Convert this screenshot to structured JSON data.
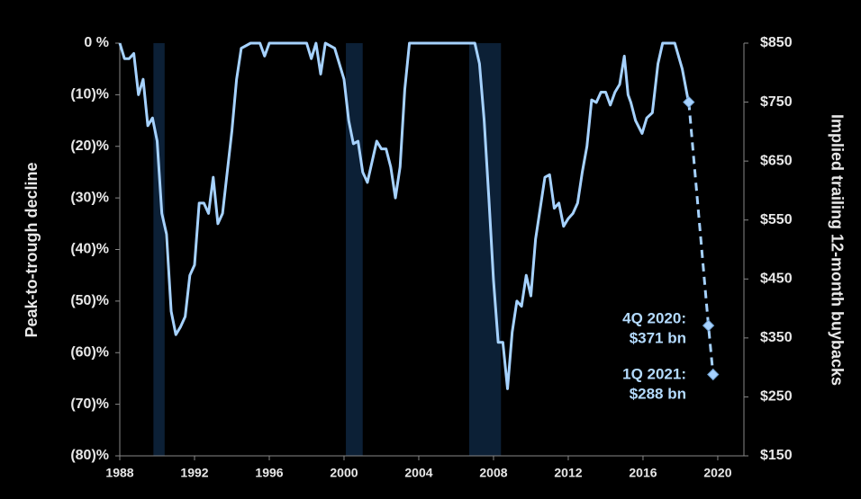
{
  "chart_data": {
    "type": "line",
    "ylabel": "Peak-to-trough decline",
    "y2label": "Implied trailing 12-month buybacks",
    "xlim": [
      1988,
      2021.4
    ],
    "xticks": [
      1988,
      1992,
      1996,
      2000,
      2004,
      2008,
      2012,
      2016,
      2020
    ],
    "ylim": [
      -80,
      0
    ],
    "yticks": [
      {
        "value": 0,
        "label": "0 %"
      },
      {
        "value": -10,
        "label": "(10)%"
      },
      {
        "value": -20,
        "label": "(20)%"
      },
      {
        "value": -30,
        "label": "(30)%"
      },
      {
        "value": -40,
        "label": "(40)%"
      },
      {
        "value": -50,
        "label": "(50)%"
      },
      {
        "value": -60,
        "label": "(60)%"
      },
      {
        "value": -70,
        "label": "(70)%"
      },
      {
        "value": -80,
        "label": "(80)%"
      }
    ],
    "y2lim": [
      150,
      850
    ],
    "y2ticks": [
      {
        "value": 850,
        "label": "$850"
      },
      {
        "value": 750,
        "label": "$750"
      },
      {
        "value": 650,
        "label": "$650"
      },
      {
        "value": 550,
        "label": "$550"
      },
      {
        "value": 450,
        "label": "$450"
      },
      {
        "value": 350,
        "label": "$350"
      },
      {
        "value": 250,
        "label": "$250"
      },
      {
        "value": 150,
        "label": "$150"
      }
    ],
    "shaded_ranges": [
      [
        1989.8,
        1990.4
      ],
      [
        2000.1,
        2001.0
      ],
      [
        2006.7,
        2008.4
      ]
    ],
    "shade_color": "#0c2036",
    "series": [
      {
        "color": "#a6d2ff",
        "x": [
          1988.0,
          1988.25,
          1988.5,
          1988.75,
          1989.0,
          1989.25,
          1989.5,
          1989.75,
          1990.0,
          1990.25,
          1990.5,
          1990.75,
          1991.0,
          1991.25,
          1991.5,
          1991.75,
          1992.0,
          1992.25,
          1992.5,
          1992.75,
          1993.0,
          1993.25,
          1993.5,
          1993.75,
          1994.0,
          1994.25,
          1994.5,
          1995.0,
          1995.5,
          1995.75,
          1996.0,
          1998.0,
          1998.25,
          1998.5,
          1998.75,
          1999.0,
          1999.5,
          2000.0,
          2000.25,
          2000.5,
          2000.75,
          2001.0,
          2001.25,
          2001.5,
          2001.75,
          2002.0,
          2002.25,
          2002.5,
          2002.75,
          2003.0,
          2003.25,
          2003.5,
          2007.0,
          2007.25,
          2007.5,
          2007.75,
          2008.0,
          2008.25,
          2008.5,
          2008.75,
          2009.0,
          2009.25,
          2009.5,
          2009.75,
          2010.0,
          2010.25,
          2010.5,
          2010.75,
          2011.0,
          2011.25,
          2011.5,
          2011.75,
          2012.0,
          2012.25,
          2012.5,
          2012.75,
          2013.0,
          2013.25,
          2013.5,
          2013.75,
          2014.0,
          2014.25,
          2014.5,
          2014.75,
          2015.0,
          2015.2,
          2015.35,
          2015.6,
          2015.95,
          2016.2,
          2016.5,
          2016.8,
          2017.05,
          2017.7,
          2018.1,
          2018.45
        ],
        "values": [
          0,
          -3,
          -3,
          -2,
          -10,
          -7,
          -16,
          -14.5,
          -19,
          -33,
          -37,
          -52,
          -56.5,
          -55,
          -53,
          -45,
          -43,
          -31,
          -31,
          -33,
          -26,
          -35,
          -33,
          -25,
          -17,
          -7,
          -1,
          0,
          0,
          -2.5,
          0,
          0,
          -3,
          0,
          -6,
          0,
          -1,
          -7,
          -15,
          -19.5,
          -19,
          -25,
          -27,
          -23,
          -19,
          -20.5,
          -20.5,
          -24,
          -30,
          -24,
          -9,
          0,
          0,
          -4,
          -15,
          -30,
          -46,
          -58,
          -58,
          -67,
          -56,
          -50,
          -51,
          -45,
          -49,
          -38,
          -32,
          -26,
          -25.5,
          -32,
          -31,
          -35.5,
          -34,
          -33,
          -31,
          -25,
          -20,
          -11,
          -11.5,
          -9.5,
          -9.5,
          -12,
          -9.5,
          -8,
          -2.5,
          -10,
          -11.5,
          -15,
          -17.5,
          -14.5,
          -13.5,
          -4,
          0,
          0,
          -5,
          -11.7
        ]
      },
      {
        "color": "#a6d2ff",
        "axis": "y2",
        "dashed": true,
        "marker": "diamond",
        "x": [
          2018.45,
          2019.5,
          2019.75
        ],
        "values": [
          750,
          371,
          288
        ]
      }
    ],
    "annotations": [
      {
        "text": [
          "4Q 2020:",
          "$371 bn"
        ]
      },
      {
        "text": [
          "1Q 2021:",
          "$288 bn"
        ]
      }
    ]
  }
}
